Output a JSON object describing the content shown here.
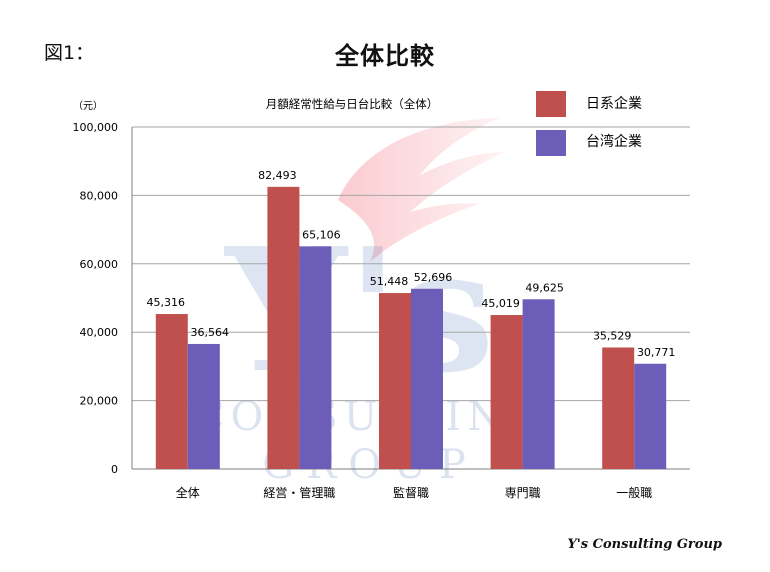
{
  "figure_label": "図1：",
  "main_title": "全体比較",
  "footer": "Y's Consulting Group",
  "watermark": {
    "letters": "Y's",
    "line1": "CONSULTING",
    "line2": "GROUP"
  },
  "colors": {
    "series_1": "#c0504d",
    "series_2": "#6b5db8",
    "grid": "#a6a6a6",
    "axis": "#7f7f7f"
  },
  "chart_data": {
    "type": "bar",
    "title": "月額経常性給与日台比較（全体）",
    "ylabel": "（元）",
    "xlabel": "",
    "categories": [
      "全体",
      "経営・管理職",
      "監督職",
      "専門職",
      "一般職"
    ],
    "series": [
      {
        "name": "日系企業",
        "values": [
          45316,
          82493,
          51448,
          45019,
          35529
        ],
        "labels": [
          "45,316",
          "82,493",
          "51,448",
          "45,019",
          "35,529"
        ]
      },
      {
        "name": "台湾企業",
        "values": [
          36564,
          65106,
          52696,
          49625,
          30771
        ],
        "labels": [
          "36,564",
          "65,106",
          "52,696",
          "49,625",
          "30,771"
        ]
      }
    ],
    "ylim": [
      0,
      100000
    ],
    "yticks": [
      0,
      20000,
      40000,
      60000,
      80000,
      100000
    ],
    "ytick_labels": [
      "0",
      "20,000",
      "40,000",
      "60,000",
      "80,000",
      "100,000"
    ],
    "grid": true,
    "legend_position": "top-right"
  }
}
